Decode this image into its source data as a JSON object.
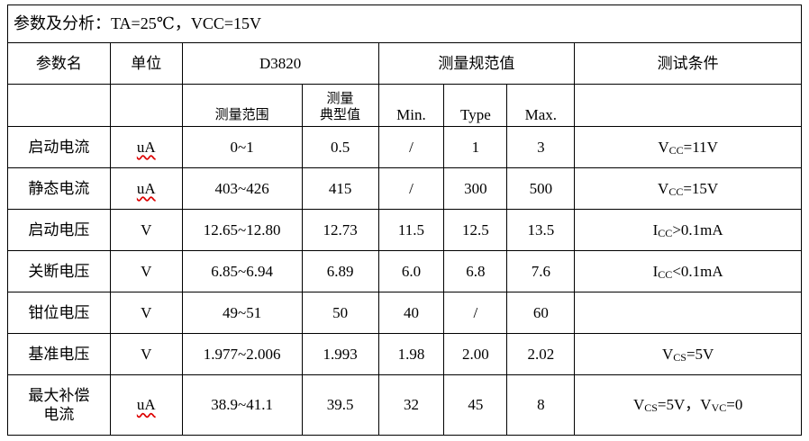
{
  "title": "参数及分析：TA=25℃，VCC=15V",
  "table": {
    "header1": [
      "参数名",
      "单位",
      "D3820",
      "测量规范值",
      "测试条件"
    ],
    "header2": [
      "测量范围",
      "测量\n典型值",
      "Min.",
      "Type",
      "Max."
    ],
    "rows": [
      [
        "启动电流",
        "uA",
        "0~1",
        "0.5",
        "/",
        "1",
        "3",
        [
          "V",
          "CC",
          "=11V"
        ]
      ],
      [
        "静态电流",
        "uA",
        "403~426",
        "415",
        "/",
        "300",
        "500",
        [
          "V",
          "CC",
          "=15V"
        ]
      ],
      [
        "启动电压",
        "V",
        "12.65~12.80",
        "12.73",
        "11.5",
        "12.5",
        "13.5",
        [
          "I",
          "CC",
          ">0.1mA"
        ]
      ],
      [
        "关断电压",
        "V",
        "6.85~6.94",
        "6.89",
        "6.0",
        "6.8",
        "7.6",
        [
          "I",
          "CC",
          "<0.1mA"
        ]
      ],
      [
        "钳位电压",
        "V",
        "49~51",
        "50",
        "40",
        "/",
        "60",
        null
      ],
      [
        "基准电压",
        "V",
        "1.977~2.006",
        "1.993",
        "1.98",
        "2.00",
        "2.02",
        [
          "V",
          "CS",
          "=5V"
        ]
      ],
      [
        "最大补偿\n电流",
        "uA",
        "38.9~41.1",
        "39.5",
        "32",
        "45",
        "8",
        [
          "V",
          "CS",
          "=5V，V",
          "VC",
          "=0"
        ]
      ]
    ]
  }
}
